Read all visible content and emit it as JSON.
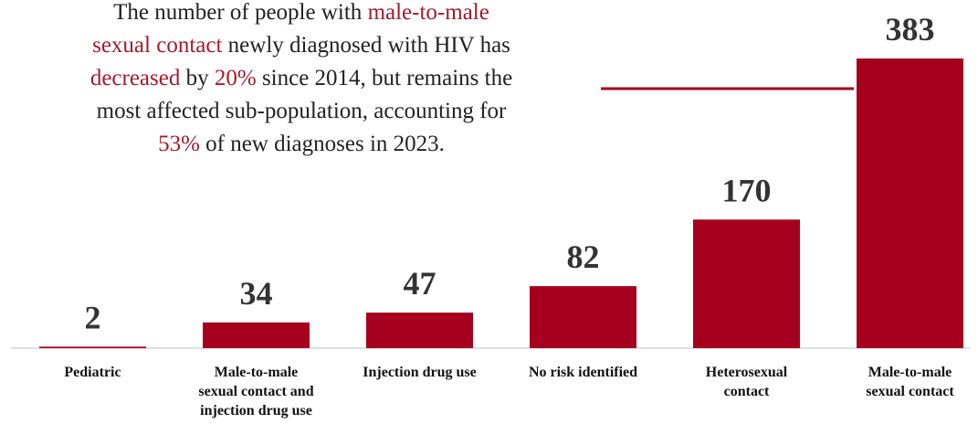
{
  "annotation": {
    "line1_pre": "The number of people with ",
    "line1_hl": "male-to-male",
    "line2_hl": "sexual contact",
    "line2_post": " newly diagnosed with HIV has",
    "line3_hl1": "decreased",
    "line3_mid": " by ",
    "line3_hl2": "20%",
    "line3_post": " since 2014, but remains the",
    "line4": "most affected sub-population, accounting for",
    "line5_hl": "53%",
    "line5_post": " of new diagnoses in 2023."
  },
  "colors": {
    "bar": "#a6001f",
    "highlight": "#a6192e",
    "value_text": "#333333",
    "axis": "#bfbfbf"
  },
  "chart_data": {
    "type": "bar",
    "categories": [
      [
        "Pediatric"
      ],
      [
        "Male-to-male",
        "sexual contact and",
        "injection drug use"
      ],
      [
        "Injection drug use"
      ],
      [
        "No risk identified"
      ],
      [
        "Heterosexual",
        "contact"
      ],
      [
        "Male-to-male",
        "sexual contact"
      ]
    ],
    "values": [
      2,
      34,
      47,
      82,
      170,
      383
    ],
    "data_labels": [
      "2",
      "34",
      "47",
      "82",
      "170",
      "383"
    ],
    "ylim": [
      0,
      383
    ],
    "grid": false,
    "legend": "none",
    "title": "",
    "xlabel": "",
    "ylabel": ""
  }
}
